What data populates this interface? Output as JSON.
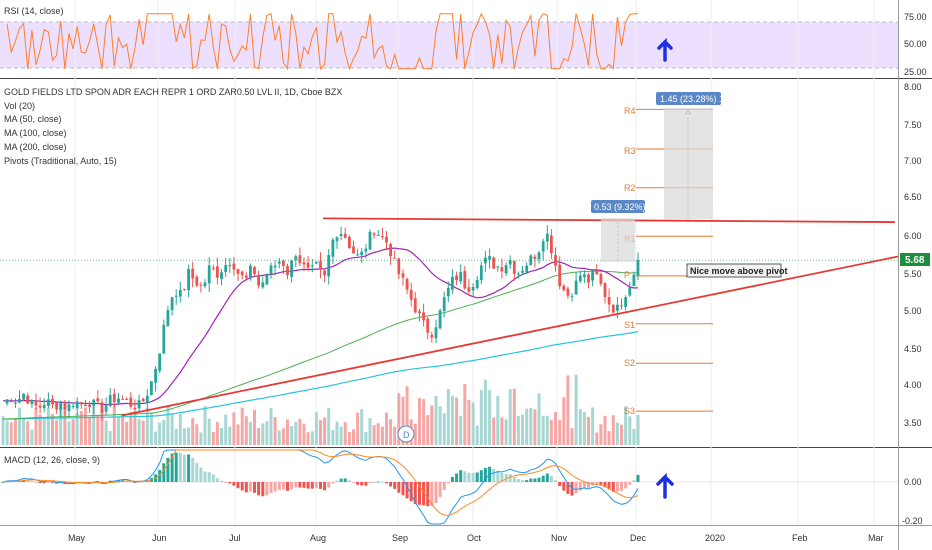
{
  "colors": {
    "up": "#26a69a",
    "down": "#ef5350",
    "vol_up": "#a7d7d2",
    "vol_down": "#f5a7a6",
    "ma50": "#9c27b0",
    "ma100": "#4caf50",
    "ma200": "#26c6da",
    "rsi_line": "#ff7f2a",
    "rsi_band": "#ede0ff",
    "trend": "#e53935",
    "pivot": "#e07b39",
    "price_tag": "#1b8e3e",
    "measure": "#5b87c7",
    "arrow": "#1e2ee0",
    "macd_line": "#2196f3",
    "signal_line": "#ff8a1f"
  },
  "rsi_panel": {
    "label": "RSI (14, close)",
    "ticks": [
      "75.00",
      "50.00",
      "25.00"
    ],
    "arrow_icon": "up-arrow-icon"
  },
  "price_panel": {
    "title": "GOLD FIELDS LTD SPON ADR EACH REPR 1 ORD ZAR0.50 LVL II, 1D, Cboe BZX",
    "indicators": [
      "Vol (20)",
      "MA (50, close)",
      "MA (100, close)",
      "MA (200, close)",
      "Pivots (Traditional, Auto, 15)"
    ],
    "ticks": [
      "8.00",
      "7.50",
      "7.00",
      "6.50",
      "6.00",
      "5.50",
      "5.00",
      "4.50",
      "4.00",
      "3.50"
    ],
    "last_price": "5.68",
    "pivot_labels": [
      "R4",
      "R3",
      "R2",
      "R1",
      "P",
      "S1",
      "S2",
      "S3"
    ],
    "measure_1": "0.53 (9.32%) 53",
    "measure_2": "1.45 (23.28%) 145",
    "annotation": "Nice move above pivot",
    "event_badge": "D"
  },
  "macd_panel": {
    "label": "MACD (12, 26, close, 9)",
    "ticks": [
      "0.00",
      "-0.20"
    ],
    "arrow_icon": "up-arrow-icon"
  },
  "time_axis": {
    "labels": [
      "May",
      "Jun",
      "Jul",
      "Aug",
      "Sep",
      "Oct",
      "Nov",
      "Dec",
      "2020",
      "Feb",
      "Mar"
    ]
  },
  "chart_data": {
    "type": "candlestick",
    "title": "GOLD FIELDS LTD SPON ADR EACH REPR 1 ORD ZAR0.50 LVL II, 1D, Cboe BZX",
    "x_labels": [
      "May",
      "Jun",
      "Jul",
      "Aug",
      "Sep",
      "Oct",
      "Nov",
      "Dec",
      "2020",
      "Feb",
      "Mar"
    ],
    "y_range": [
      3.2,
      8.05
    ],
    "close_path": [
      3.75,
      3.85,
      3.8,
      3.9,
      3.75,
      3.7,
      3.8,
      3.72,
      3.78,
      3.7,
      3.8,
      3.75,
      3.8,
      3.72,
      3.7,
      3.8,
      3.85,
      3.8,
      3.75,
      3.72,
      3.85,
      4.1,
      4.5,
      5.0,
      5.3,
      5.2,
      5.5,
      5.4,
      5.3,
      5.6,
      5.5,
      5.6,
      5.7,
      5.5,
      5.4,
      5.6,
      5.3,
      5.5,
      5.6,
      5.7,
      5.5,
      5.8,
      5.6,
      5.5,
      5.6,
      5.4,
      5.9,
      6.1,
      6.0,
      5.8,
      5.7,
      5.9,
      6.1,
      6.0,
      5.9,
      5.6,
      5.4,
      5.2,
      5.0,
      4.8,
      4.7,
      4.9,
      5.2,
      5.4,
      5.5,
      5.3,
      5.4,
      5.6,
      5.7,
      5.6,
      5.6,
      5.7,
      5.5,
      5.6,
      5.7,
      5.8,
      6.1,
      5.8,
      5.4,
      5.2,
      5.3,
      5.5,
      5.4,
      5.5,
      5.3,
      5.1,
      5.0,
      5.2,
      5.4,
      5.68
    ],
    "rsi_range": [
      20,
      80
    ],
    "rsi_levels": [
      70,
      30
    ],
    "macd_range": [
      -0.22,
      0.2
    ],
    "pivot_levels": {
      "R4": 7.7,
      "R3": 7.17,
      "R2": 6.65,
      "R1": 6.0,
      "P": 5.47,
      "S1": 4.83,
      "S2": 4.3,
      "S3": 3.66
    },
    "last_close": 5.68,
    "resistance_level": 6.2,
    "measure_1": {
      "label": "0.53 (9.32%) 53",
      "from": 5.68,
      "to": 6.21
    },
    "measure_2": {
      "label": "1.45 (23.28%) 145",
      "from": 6.23,
      "to": 7.68
    },
    "annotation": "Nice move above pivot"
  }
}
